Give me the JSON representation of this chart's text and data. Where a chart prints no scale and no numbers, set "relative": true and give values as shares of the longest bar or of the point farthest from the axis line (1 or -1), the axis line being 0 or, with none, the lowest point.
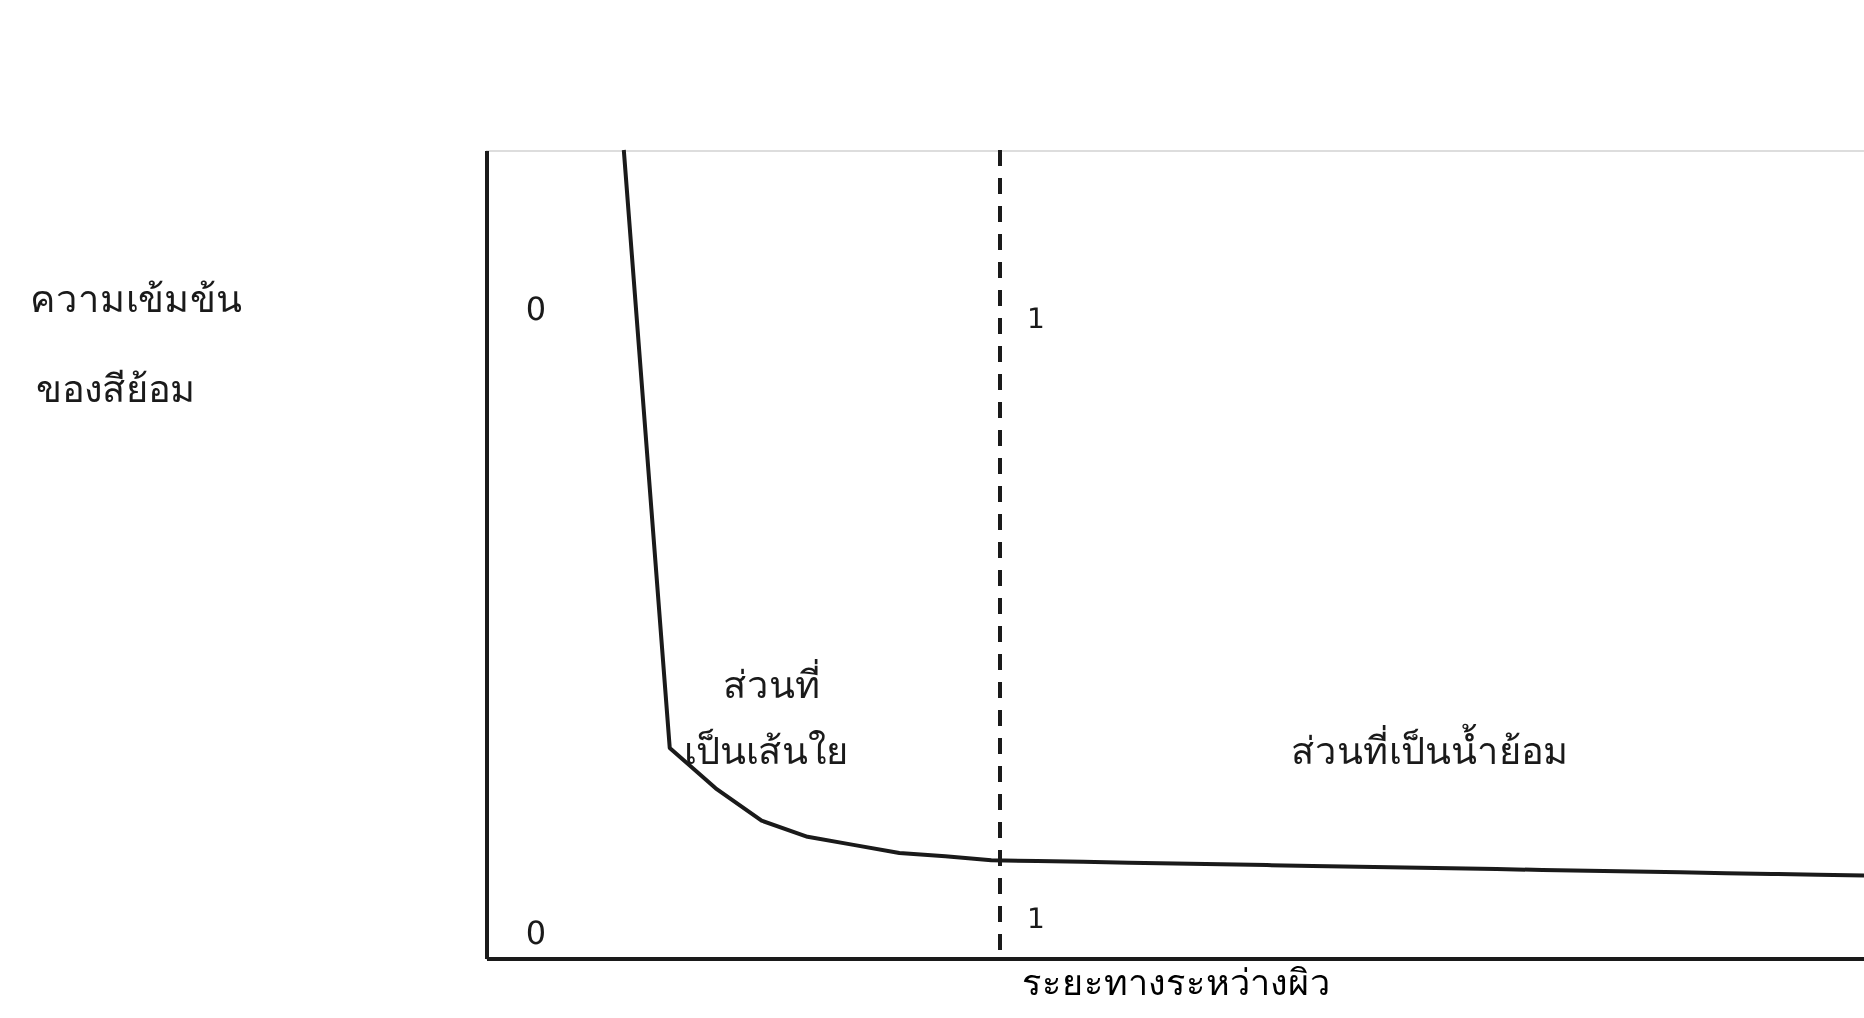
{
  "chart_data": {
    "type": "line",
    "relative": true,
    "xlabel": "ระยะทางระหว่างผิว",
    "categories": [
      null,
      null,
      null,
      null,
      null,
      null,
      null,
      null,
      null,
      null,
      null,
      null,
      null,
      null,
      null,
      null,
      null,
      null,
      null,
      null,
      null,
      null,
      null,
      null,
      null,
      null,
      null,
      null,
      null,
      null,
      null
    ],
    "series": [
      {
        "color": "#1a1a1a",
        "values": [
          null,
          null,
          null,
          1.0,
          0.26,
          0.21,
          0.17,
          0.15,
          0.14,
          0.13,
          0.126,
          0.121,
          0.12,
          0.119,
          0.118,
          0.117,
          0.116,
          0.115,
          0.114,
          0.113,
          0.112,
          0.111,
          0.11,
          0.109,
          0.108,
          0.107,
          0.106,
          0.105,
          0.104,
          0.103,
          0.102
        ]
      }
    ],
    "annotations": [
      "ความเข้มข้น",
      "ของสีย้อม",
      "0",
      "0",
      "1",
      "1",
      "ส่วนที่",
      "เป็นเส้นใย",
      "ส่วนที่เป็นน้ำย้อม"
    ],
    "tick_labels": false,
    "grid": false,
    "marker": "none",
    "line_style": "solid"
  }
}
